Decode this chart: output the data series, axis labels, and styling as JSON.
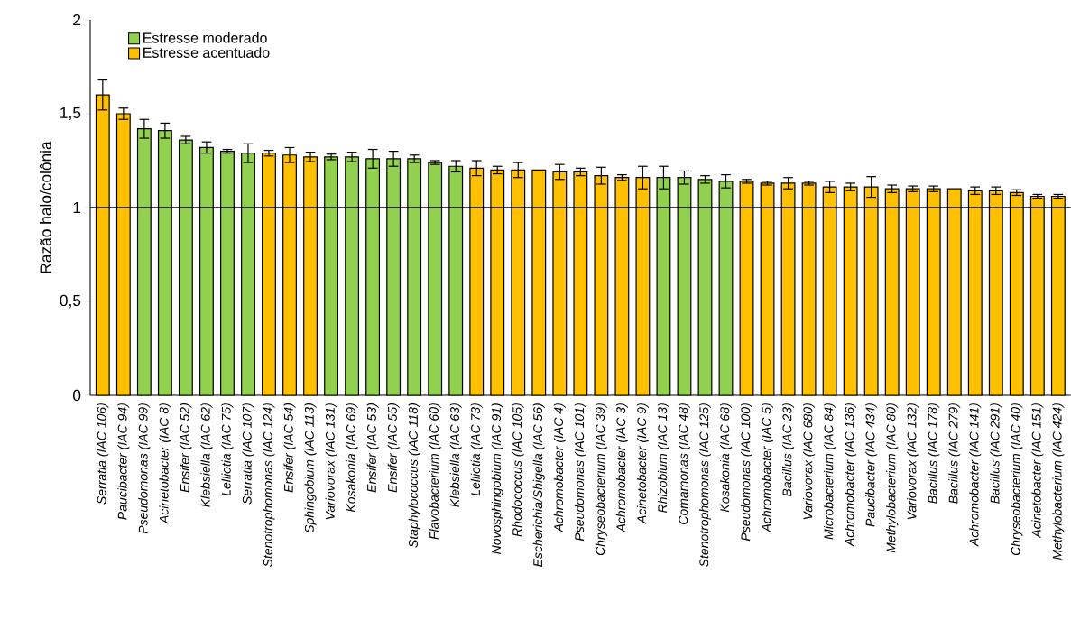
{
  "chart_data": {
    "type": "bar",
    "ylabel": "Razão halo/colônia",
    "categories": [
      "Serratia (IAC 106)",
      "Paucibacter (IAC 94)",
      "Pseudomonas (IAC 99)",
      "Acinetobacter (IAC 8)",
      "Ensifer (IAC 52)",
      "Klebsiella (IAC 62)",
      "Lelliotia (IAC 75)",
      "Serratia (IAC 107)",
      "Stenotrophomonas (IAC 124)",
      "Ensifer (IAC 54)",
      "Sphingobium (IAC 113)",
      "Variovorax (IAC 131)",
      "Kosakonia (IAC 69)",
      "Ensifer (IAC 53)",
      "Ensifer (IAC 55)",
      "Staphylococcus (IAC 118)",
      "Flavobacterium (IAC 60)",
      "Klebsiella (IAC 63)",
      "Lelliotia (IAC 73)",
      "Novosphingobium (IAC 91)",
      "Rhodococcus (IAC 105)",
      "Escherichia/Shigella (IAC 56)",
      "Achromobacter (IAC 4)",
      "Pseudomonas (IAC 101)",
      "Chryseobacterium (IAC 39)",
      "Achromobacter (IAC 3)",
      "Acinetobacter (IAC 9)",
      "Rhizobium (IAC 13)",
      "Comamonas (IAC 48)",
      "Stenotrophomonas (IAC 125)",
      "Kosakonia (IAC 68)",
      "Pseudomonas (IAC 100)",
      "Achromobacter (IAC 5)",
      "Bacillus (IAC 23)",
      "Variovorax (IAC 680)",
      "Microbacterium (IAC 84)",
      "Achromobacter (IAC 136)",
      "Paucibacter (IAC 434)",
      "Methylobacterium (IAC 80)",
      "Variovorax (IAC 132)",
      "Bacillus (IAC 178)",
      "Bacillus (IAC 279)",
      "Achromobacter (IAC 141)",
      "Bacillus (IAC 291)",
      "Chryseobacterium (IAC 40)",
      "Acinetobacter (IAC 151)",
      "Methylobacterium (IAC 424)"
    ],
    "series": [
      {
        "name": "Estresse moderado",
        "color": "#92d050",
        "values": [
          null,
          null,
          1.42,
          1.41,
          1.36,
          1.32,
          1.3,
          1.29,
          null,
          null,
          null,
          1.27,
          1.27,
          1.26,
          1.26,
          1.26,
          1.24,
          1.22,
          null,
          null,
          null,
          null,
          null,
          null,
          null,
          null,
          null,
          1.16,
          1.16,
          1.15,
          1.14,
          null,
          null,
          null,
          null,
          null,
          null,
          null,
          null,
          null,
          null,
          null,
          null,
          null,
          null,
          null,
          null
        ],
        "errors": [
          null,
          null,
          0.05,
          0.04,
          0.02,
          0.03,
          0.01,
          0.05,
          null,
          null,
          null,
          0.015,
          0.025,
          0.05,
          0.04,
          0.02,
          0.01,
          0.03,
          null,
          null,
          null,
          null,
          null,
          null,
          null,
          null,
          null,
          0.06,
          0.035,
          0.02,
          0.035,
          null,
          null,
          null,
          null,
          null,
          null,
          null,
          null,
          null,
          null,
          null,
          null,
          null,
          null,
          null,
          null
        ]
      },
      {
        "name": "Estresse acentuado",
        "color": "#ffc000",
        "values": [
          1.6,
          1.5,
          null,
          null,
          null,
          null,
          null,
          null,
          1.29,
          1.28,
          1.27,
          null,
          null,
          null,
          null,
          null,
          null,
          null,
          1.21,
          1.2,
          1.2,
          1.2,
          1.19,
          1.19,
          1.17,
          1.16,
          1.16,
          null,
          null,
          null,
          null,
          1.14,
          1.13,
          1.13,
          1.13,
          1.11,
          1.11,
          1.11,
          1.1,
          1.1,
          1.1,
          1.1,
          1.09,
          1.09,
          1.08,
          1.06,
          1.06
        ],
        "errors": [
          0.08,
          0.03,
          null,
          null,
          null,
          null,
          null,
          null,
          0.015,
          0.04,
          0.025,
          null,
          null,
          null,
          null,
          null,
          null,
          null,
          0.04,
          0.02,
          0.04,
          null,
          0.04,
          0.02,
          0.045,
          0.015,
          0.06,
          null,
          null,
          null,
          null,
          0.01,
          0.01,
          0.03,
          0.01,
          0.03,
          0.02,
          0.055,
          0.02,
          0.015,
          0.015,
          null,
          0.02,
          0.02,
          0.015,
          0.01,
          0.01
        ]
      }
    ],
    "ylim": [
      0,
      2
    ],
    "yticks": [
      0,
      {
        "value": 0.5,
        "label": "0,5"
      },
      1,
      {
        "value": 1.5,
        "label": "1,5"
      },
      2
    ],
    "ref_lines": [
      {
        "axis": "y",
        "value": 1,
        "color": "#000000"
      }
    ],
    "legend": "top left",
    "grid": false
  }
}
